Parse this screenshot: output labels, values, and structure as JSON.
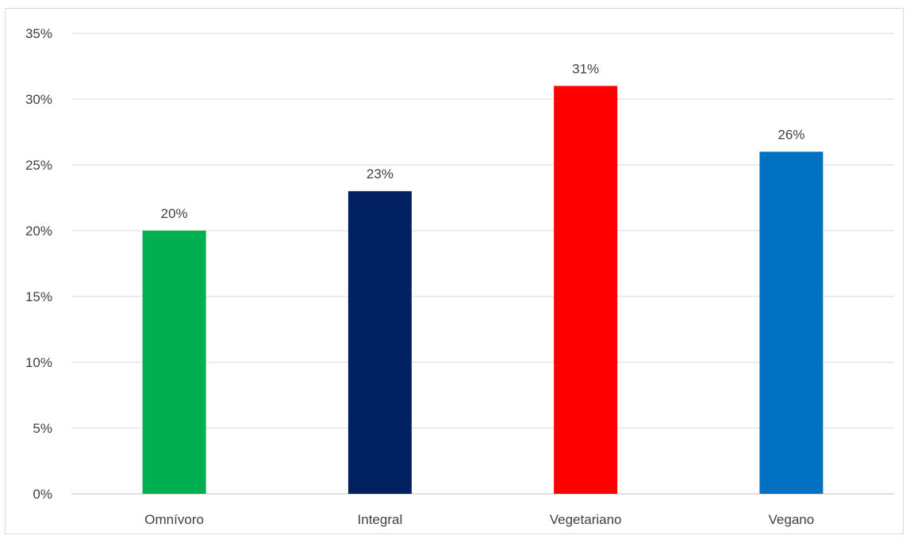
{
  "chart_data": {
    "type": "bar",
    "categories": [
      "Omnívoro",
      "Integral",
      "Vegetariano",
      "Vegano"
    ],
    "values": [
      20,
      23,
      31,
      26
    ],
    "data_labels": [
      "20%",
      "23%",
      "31%",
      "26%"
    ],
    "colors": [
      "#00b050",
      "#002060",
      "#ff0000",
      "#0070c0"
    ],
    "ylim": [
      0,
      35
    ],
    "yticks": [
      0,
      5,
      10,
      15,
      20,
      25,
      30,
      35
    ],
    "ytick_labels": [
      "0%",
      "5%",
      "10%",
      "15%",
      "20%",
      "25%",
      "30%",
      "35%"
    ],
    "grid": true,
    "title": "",
    "xlabel": "",
    "ylabel": ""
  }
}
